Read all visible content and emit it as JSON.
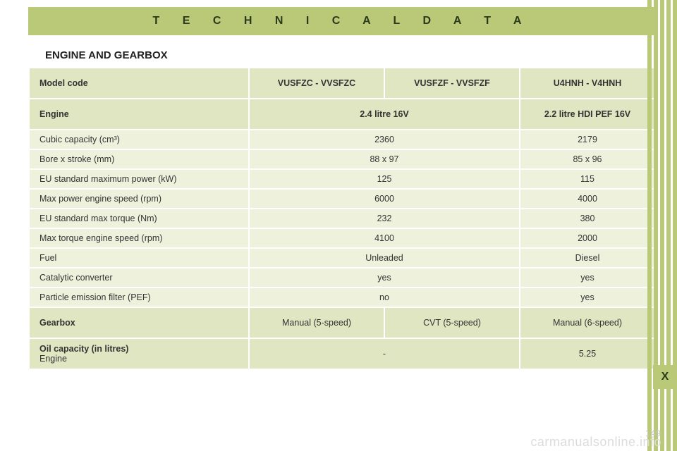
{
  "header": {
    "title": "T E C H N I C A L   D A T A"
  },
  "section_title": "ENGINE AND GEARBOX",
  "table": {
    "model_code": {
      "label": "Model code",
      "c1": "VUSFZC - VVSFZC",
      "c2": "VUSFZF - VVSFZF",
      "c3": "U4HNH - V4HNH"
    },
    "engine_row": {
      "label": "Engine",
      "c12": "2.4 litre 16V",
      "c3": "2.2 litre HDI PEF 16V"
    },
    "specs": [
      {
        "label": "Cubic capacity (cm³)",
        "c12": "2360",
        "c3": "2179"
      },
      {
        "label": "Bore x stroke (mm)",
        "c12": "88 x 97",
        "c3": "85 x 96"
      },
      {
        "label": "EU standard maximum power (kW)",
        "c12": "125",
        "c3": "115"
      },
      {
        "label": "Max power engine speed (rpm)",
        "c12": "6000",
        "c3": "4000"
      },
      {
        "label": "EU standard max torque (Nm)",
        "c12": "232",
        "c3": "380"
      },
      {
        "label": "Max torque engine speed (rpm)",
        "c12": "4100",
        "c3": "2000"
      },
      {
        "label": "Fuel",
        "c12": "Unleaded",
        "c3": "Diesel"
      },
      {
        "label": "Catalytic converter",
        "c12": "yes",
        "c3": "yes"
      },
      {
        "label": "Particle emission filter (PEF)",
        "c12": "no",
        "c3": "yes"
      }
    ],
    "gearbox": {
      "label": "Gearbox",
      "c1": "Manual\n(5-speed)",
      "c2": "CVT\n(5-speed)",
      "c3": "Manual\n(6-speed)"
    },
    "oil": {
      "label": "Oil capacity (in litres)",
      "sub": "Engine",
      "c12": "-",
      "c3": "5.25"
    }
  },
  "tab": {
    "label": "X"
  },
  "page_number": "149",
  "watermark": "carmanualsonline.info",
  "colors": {
    "band": "#bac977",
    "row_header": "#e0e6c2",
    "row_data": "#eef2dd",
    "text": "#333333"
  }
}
